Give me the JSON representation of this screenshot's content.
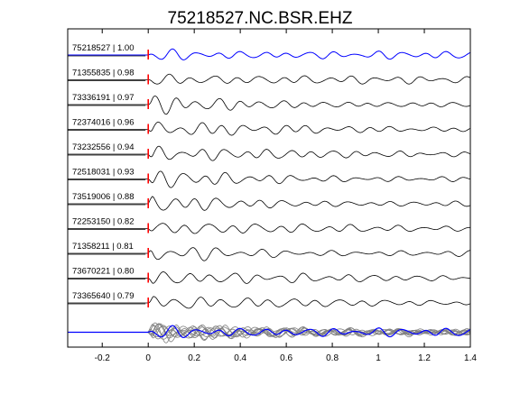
{
  "chart_data": {
    "type": "line",
    "title": "75218527.NC.BSR.EHZ",
    "xlabel": "",
    "ylabel": "",
    "xlim": [
      -0.35,
      1.4
    ],
    "x_ticks": [
      -0.2,
      0,
      0.2,
      0.4,
      0.6,
      0.8,
      1,
      1.2,
      1.4
    ],
    "x_tick_labels": [
      "-0.2",
      "0",
      "0.2",
      "0.4",
      "0.6",
      "0.8",
      "1",
      "1.2",
      "1.4"
    ],
    "grid": false,
    "pick_time": 0,
    "pick_color": "#ff0000",
    "reference_color": "#0000ff",
    "trace_color": "#000000",
    "stack_trace_color": "#808080",
    "traces": [
      {
        "label": "75218527 | 1.00",
        "event_id": "75218527",
        "correlation": 1.0,
        "reference": true
      },
      {
        "label": "71355835 | 0.98",
        "event_id": "71355835",
        "correlation": 0.98
      },
      {
        "label": "73336191 | 0.97",
        "event_id": "73336191",
        "correlation": 0.97
      },
      {
        "label": "72374016 | 0.96",
        "event_id": "72374016",
        "correlation": 0.96
      },
      {
        "label": "73232556 | 0.94",
        "event_id": "73232556",
        "correlation": 0.94
      },
      {
        "label": "72518031 | 0.93",
        "event_id": "72518031",
        "correlation": 0.93
      },
      {
        "label": "73519006 | 0.88",
        "event_id": "73519006",
        "correlation": 0.88
      },
      {
        "label": "72253150 | 0.82",
        "event_id": "72253150",
        "correlation": 0.82
      },
      {
        "label": "71358211 | 0.81",
        "event_id": "71358211",
        "correlation": 0.81
      },
      {
        "label": "73670221 | 0.80",
        "event_id": "73670221",
        "correlation": 0.8
      },
      {
        "label": "73365640 | 0.79",
        "event_id": "73365640",
        "correlation": 0.79
      }
    ],
    "overlay": {
      "description_visible": false
    }
  }
}
